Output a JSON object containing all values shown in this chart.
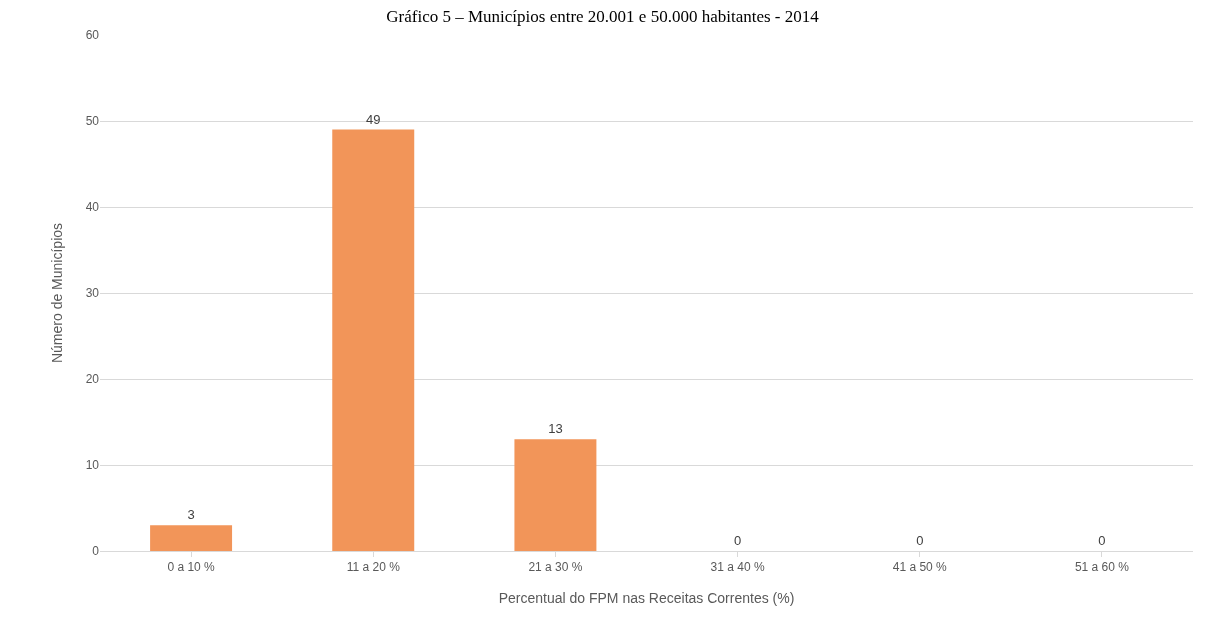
{
  "chart_data": {
    "type": "bar",
    "title": "Gráfico 5 – Municípios entre 20.001 e 50.000 habitantes - 2014",
    "xlabel": "Percentual do FPM nas Receitas Correntes (%)",
    "ylabel": "Número de Municípios",
    "categories": [
      "0 a 10 %",
      "11 a 20 %",
      "21 a 30 %",
      "31 a 40 %",
      "41 a 50 %",
      "51 a 60 %"
    ],
    "values": [
      3,
      49,
      13,
      0,
      0,
      0
    ],
    "color": "#f29559",
    "ylim": [
      0,
      60
    ],
    "yticks": [
      0,
      10,
      20,
      30,
      40,
      50,
      60
    ],
    "grid": "y",
    "data_labels": true
  }
}
